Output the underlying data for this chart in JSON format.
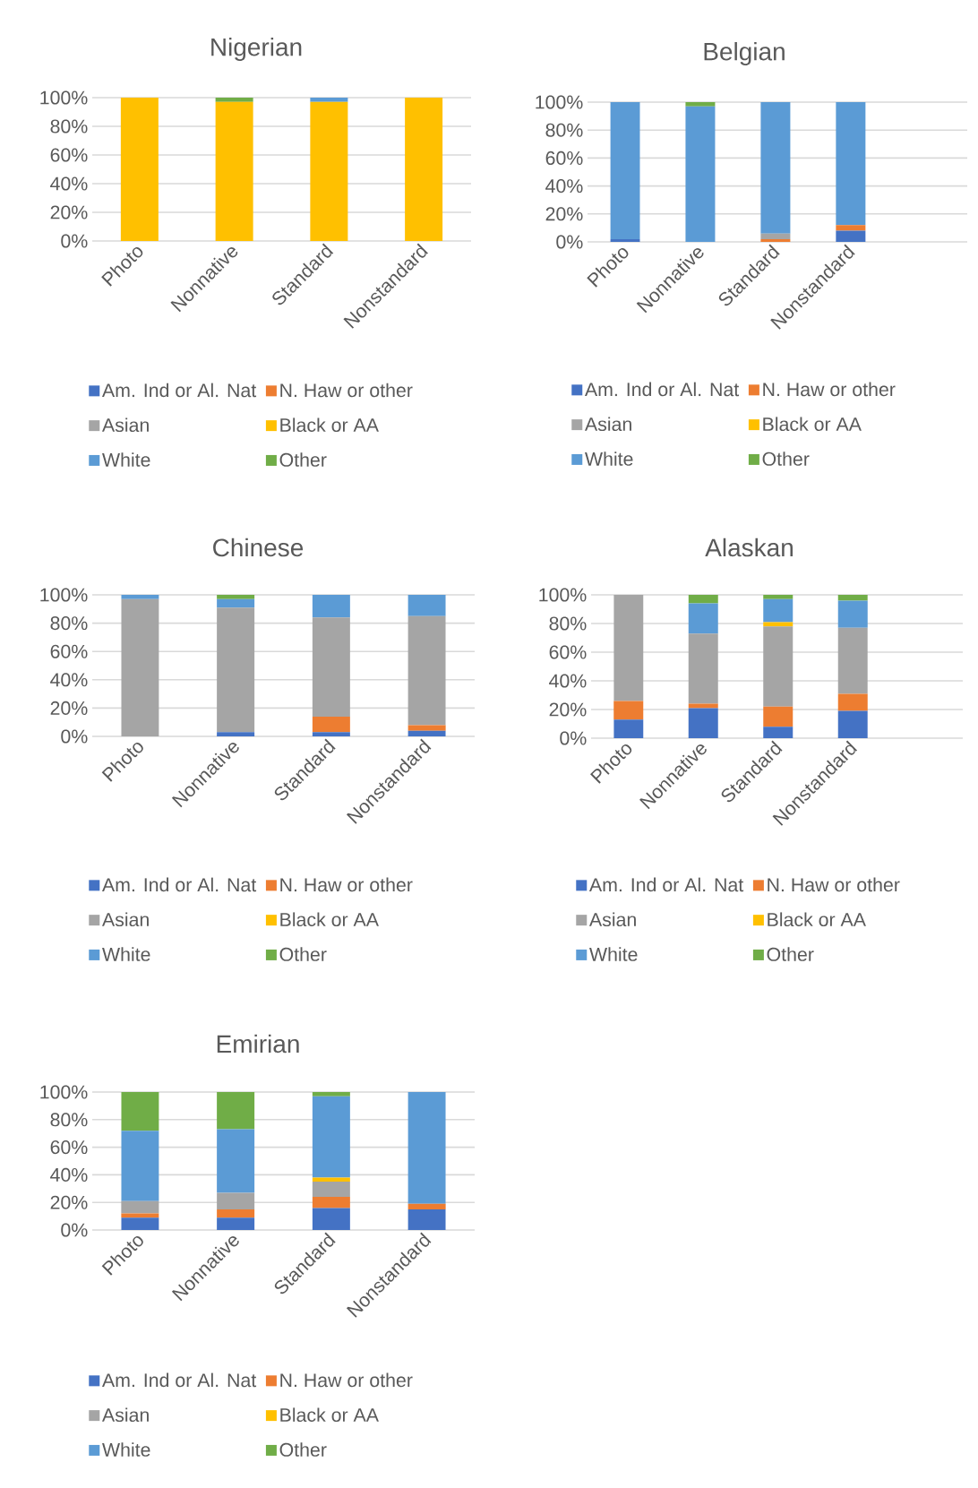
{
  "chart_data": [
    {
      "type": "bar",
      "title": "Nigerian",
      "categories": [
        "Photo",
        "Nonnative",
        "Standard",
        "Nonstandard"
      ],
      "stacked": true,
      "ylim": [
        0,
        100
      ],
      "yticks": [
        {
          "value": 0,
          "label": "0%"
        },
        {
          "value": 20,
          "label": "20%"
        },
        {
          "value": 40,
          "label": "40%"
        },
        {
          "value": 60,
          "label": "60%"
        },
        {
          "value": 80,
          "label": "80%"
        },
        {
          "value": 100,
          "label": "100%"
        }
      ],
      "grid": "y",
      "legend": "bottom",
      "series": [
        {
          "name": "Am. Ind or Al. Nat",
          "color": "#4472c4",
          "values": [
            0,
            0,
            0,
            0
          ]
        },
        {
          "name": "N. Haw or other",
          "color": "#ed7d31",
          "values": [
            0,
            0,
            0,
            0
          ]
        },
        {
          "name": "Asian",
          "color": "#a5a5a5",
          "values": [
            0,
            0,
            0,
            0
          ]
        },
        {
          "name": "Black or AA",
          "color": "#ffc000",
          "values": [
            100,
            97,
            97,
            100
          ]
        },
        {
          "name": "White",
          "color": "#5b9bd5",
          "values": [
            0,
            0,
            3,
            0
          ]
        },
        {
          "name": "Other",
          "color": "#70ad47",
          "values": [
            0,
            3,
            0,
            0
          ]
        }
      ]
    },
    {
      "type": "bar",
      "title": "Belgian",
      "categories": [
        "Photo",
        "Nonnative",
        "Standard",
        "Nonstandard"
      ],
      "stacked": true,
      "ylim": [
        0,
        100
      ],
      "yticks": [
        {
          "value": 0,
          "label": "0%"
        },
        {
          "value": 20,
          "label": "20%"
        },
        {
          "value": 40,
          "label": "40%"
        },
        {
          "value": 60,
          "label": "60%"
        },
        {
          "value": 80,
          "label": "80%"
        },
        {
          "value": 100,
          "label": "100%"
        }
      ],
      "grid": "y",
      "legend": "bottom",
      "series": [
        {
          "name": "Am. Ind or Al. Nat",
          "color": "#4472c4",
          "values": [
            2,
            0,
            0,
            8
          ]
        },
        {
          "name": "N. Haw or other",
          "color": "#ed7d31",
          "values": [
            0,
            0,
            2,
            4
          ]
        },
        {
          "name": "Asian",
          "color": "#a5a5a5",
          "values": [
            0,
            0,
            4,
            0
          ]
        },
        {
          "name": "Black or AA",
          "color": "#ffc000",
          "values": [
            0,
            0,
            0,
            0
          ]
        },
        {
          "name": "White",
          "color": "#5b9bd5",
          "values": [
            98,
            97,
            94,
            88
          ]
        },
        {
          "name": "Other",
          "color": "#70ad47",
          "values": [
            0,
            3,
            0,
            0
          ]
        }
      ]
    },
    {
      "type": "bar",
      "title": "Chinese",
      "categories": [
        "Photo",
        "Nonnative",
        "Standard",
        "Nonstandard"
      ],
      "stacked": true,
      "ylim": [
        0,
        100
      ],
      "yticks": [
        {
          "value": 0,
          "label": "0%"
        },
        {
          "value": 20,
          "label": "20%"
        },
        {
          "value": 40,
          "label": "40%"
        },
        {
          "value": 60,
          "label": "60%"
        },
        {
          "value": 80,
          "label": "80%"
        },
        {
          "value": 100,
          "label": "100%"
        }
      ],
      "grid": "y",
      "legend": "bottom",
      "series": [
        {
          "name": "Am. Ind or Al. Nat",
          "color": "#4472c4",
          "values": [
            0,
            3,
            3,
            4
          ]
        },
        {
          "name": "N. Haw or other",
          "color": "#ed7d31",
          "values": [
            0,
            0,
            11,
            4
          ]
        },
        {
          "name": "Asian",
          "color": "#a5a5a5",
          "values": [
            97,
            88,
            70,
            77
          ]
        },
        {
          "name": "Black or AA",
          "color": "#ffc000",
          "values": [
            0,
            0,
            0,
            0
          ]
        },
        {
          "name": "White",
          "color": "#5b9bd5",
          "values": [
            3,
            6,
            16,
            15
          ]
        },
        {
          "name": "Other",
          "color": "#70ad47",
          "values": [
            0,
            3,
            0,
            0
          ]
        }
      ]
    },
    {
      "type": "bar",
      "title": "Alaskan",
      "categories": [
        "Photo",
        "Nonnative",
        "Standard",
        "Nonstandard"
      ],
      "stacked": true,
      "ylim": [
        0,
        100
      ],
      "yticks": [
        {
          "value": 0,
          "label": "0%"
        },
        {
          "value": 20,
          "label": "20%"
        },
        {
          "value": 40,
          "label": "40%"
        },
        {
          "value": 60,
          "label": "60%"
        },
        {
          "value": 80,
          "label": "80%"
        },
        {
          "value": 100,
          "label": "100%"
        }
      ],
      "grid": "y",
      "legend": "bottom",
      "series": [
        {
          "name": "Am. Ind or Al. Nat",
          "color": "#4472c4",
          "values": [
            13,
            21,
            8,
            19
          ]
        },
        {
          "name": "N. Haw or other",
          "color": "#ed7d31",
          "values": [
            13,
            3,
            14,
            12
          ]
        },
        {
          "name": "Asian",
          "color": "#a5a5a5",
          "values": [
            74,
            49,
            56,
            46
          ]
        },
        {
          "name": "Black or AA",
          "color": "#ffc000",
          "values": [
            0,
            0,
            3,
            0
          ]
        },
        {
          "name": "White",
          "color": "#5b9bd5",
          "values": [
            0,
            21,
            16,
            19
          ]
        },
        {
          "name": "Other",
          "color": "#70ad47",
          "values": [
            0,
            6,
            3,
            4
          ]
        }
      ]
    },
    {
      "type": "bar",
      "title": "Emirian",
      "categories": [
        "Photo",
        "Nonnative",
        "Standard",
        "Nonstandard"
      ],
      "stacked": true,
      "ylim": [
        0,
        100
      ],
      "yticks": [
        {
          "value": 0,
          "label": "0%"
        },
        {
          "value": 20,
          "label": "20%"
        },
        {
          "value": 40,
          "label": "40%"
        },
        {
          "value": 60,
          "label": "60%"
        },
        {
          "value": 80,
          "label": "80%"
        },
        {
          "value": 100,
          "label": "100%"
        }
      ],
      "grid": "y",
      "legend": "bottom",
      "series": [
        {
          "name": "Am. Ind or Al. Nat",
          "color": "#4472c4",
          "values": [
            9,
            9,
            16,
            15
          ]
        },
        {
          "name": "N. Haw or other",
          "color": "#ed7d31",
          "values": [
            3,
            6,
            8,
            4
          ]
        },
        {
          "name": "Asian",
          "color": "#a5a5a5",
          "values": [
            9,
            12,
            11,
            0
          ]
        },
        {
          "name": "Black or AA",
          "color": "#ffc000",
          "values": [
            0,
            0,
            3,
            0
          ]
        },
        {
          "name": "White",
          "color": "#5b9bd5",
          "values": [
            51,
            46,
            59,
            81
          ]
        },
        {
          "name": "Other",
          "color": "#70ad47",
          "values": [
            28,
            27,
            3,
            0
          ]
        }
      ]
    }
  ]
}
